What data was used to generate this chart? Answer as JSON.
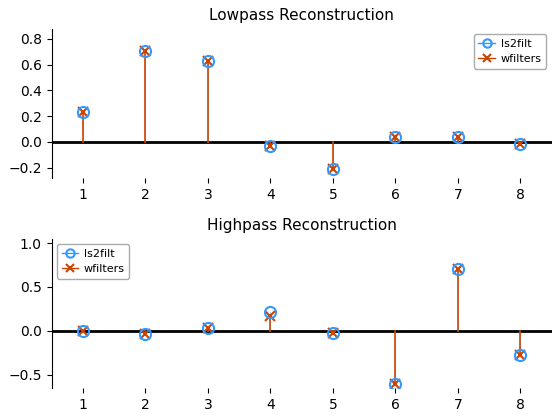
{
  "lp_x": [
    1,
    2,
    3,
    4,
    5,
    6,
    7,
    8
  ],
  "lp_ls2filt": [
    0.23,
    0.707,
    0.629,
    -0.03,
    -0.21,
    0.04,
    0.04,
    -0.02
  ],
  "lp_wfilters": [
    0.23,
    0.707,
    0.629,
    -0.03,
    -0.21,
    0.04,
    0.04,
    -0.02
  ],
  "hp_x": [
    1,
    2,
    3,
    4,
    5,
    6,
    7,
    8
  ],
  "hp_ls2filt": [
    0.0,
    -0.03,
    0.03,
    0.22,
    -0.02,
    -0.6,
    0.707,
    -0.28
  ],
  "hp_wfilters": [
    0.0,
    -0.03,
    0.03,
    0.17,
    -0.02,
    -0.6,
    0.707,
    -0.28
  ],
  "color_ls2filt": "#3399ff",
  "color_wfilters": "#cc4400",
  "title_lp": "Lowpass Reconstruction",
  "title_hp": "Highpass Reconstruction",
  "lp_ylim": [
    -0.28,
    0.88
  ],
  "hp_ylim": [
    -0.65,
    1.05
  ],
  "lp_yticks": [
    -0.2,
    0.0,
    0.2,
    0.4,
    0.6,
    0.8
  ],
  "hp_yticks": [
    -0.5,
    0.0,
    0.5,
    1.0
  ],
  "xlim": [
    0.5,
    8.5
  ],
  "xticks": [
    1,
    2,
    3,
    4,
    5,
    6,
    7,
    8
  ]
}
